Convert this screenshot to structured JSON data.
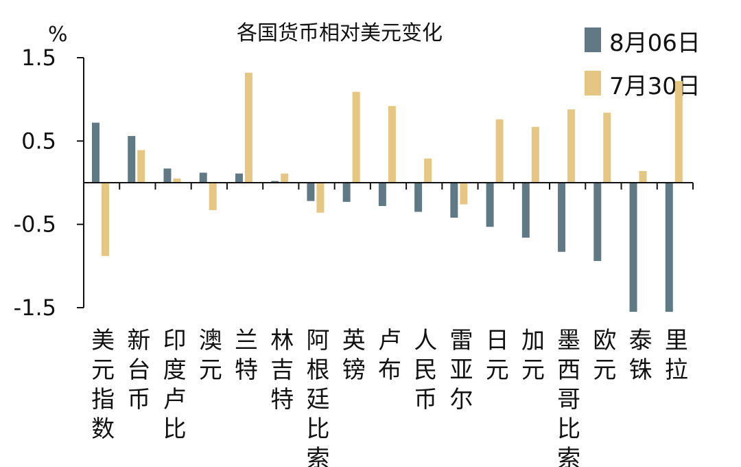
{
  "chart_data": {
    "type": "bar",
    "title": "各国货币相对美元变化",
    "ylabel": "%",
    "ylim": [
      -1.5,
      1.5
    ],
    "yticks": [
      1.5,
      0.5,
      -0.5,
      -1.5
    ],
    "ytick_labels": [
      "1.5",
      "0.5",
      "-0.5",
      "-1.5"
    ],
    "legend_position": "top-right",
    "categories": [
      "美元指数",
      "新台币",
      "印度卢比",
      "澳元",
      "兰特",
      "林吉特",
      "阿根廷比索",
      "英镑",
      "卢布",
      "人民币",
      "雷亚尔",
      "日元",
      "加元",
      "墨西哥比索",
      "欧元",
      "泰铢",
      "里拉"
    ],
    "series": [
      {
        "name": "8月06日",
        "color": "#5f7985",
        "values": [
          0.72,
          0.56,
          0.17,
          0.12,
          0.11,
          0.02,
          -0.22,
          -0.23,
          -0.28,
          -0.35,
          -0.42,
          -0.53,
          -0.66,
          -0.83,
          -0.94,
          -1.55,
          -1.55
        ]
      },
      {
        "name": "7月30日",
        "color": "#e5c683",
        "values": [
          -0.88,
          0.39,
          0.05,
          -0.33,
          1.32,
          0.11,
          -0.36,
          1.09,
          0.92,
          0.29,
          -0.26,
          0.76,
          0.67,
          0.88,
          0.84,
          0.14,
          1.22
        ]
      }
    ]
  }
}
